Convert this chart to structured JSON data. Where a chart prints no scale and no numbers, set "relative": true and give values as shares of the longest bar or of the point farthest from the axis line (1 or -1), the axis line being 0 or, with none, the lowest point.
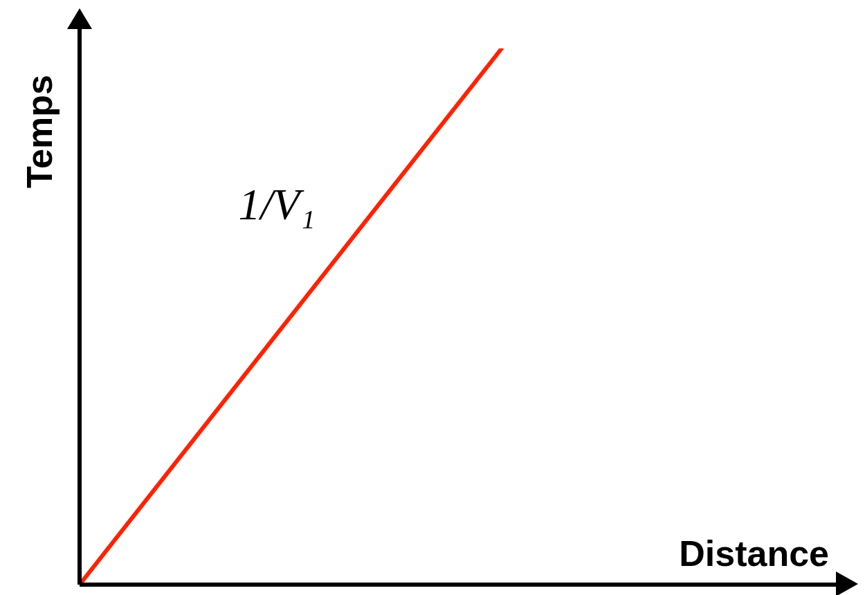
{
  "chart_data": {
    "type": "line",
    "relative": true,
    "xlabel": "Distance",
    "ylabel": "Temps",
    "annotations": [
      "1/V₁"
    ],
    "categories": [
      null,
      null
    ],
    "series": [
      {
        "color": "#ff2200",
        "values": [
          0,
          1
        ]
      }
    ],
    "marker": "none",
    "line_style": "solid"
  }
}
